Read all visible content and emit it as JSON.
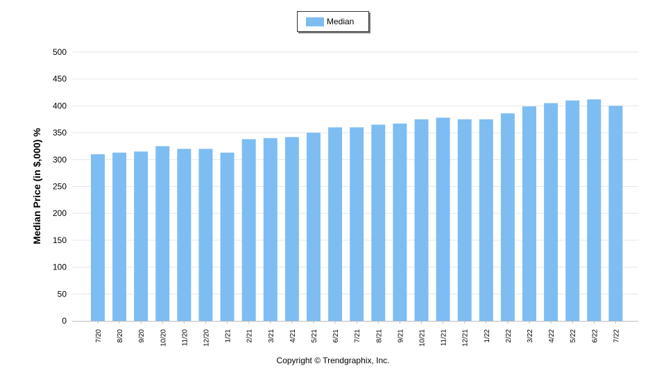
{
  "legend": {
    "label": "Median"
  },
  "colors": {
    "bar": "#7ebdf2",
    "grid": "#e6e6e6",
    "axis": "#bbbbbb"
  },
  "copyright": "Copyright © Trendgraphix, Inc.",
  "chart_data": {
    "type": "bar",
    "title": "",
    "xlabel": "",
    "ylabel": "Median Price (in $,000) %",
    "ylim": [
      0,
      500
    ],
    "yticks": [
      0,
      50,
      100,
      150,
      200,
      250,
      300,
      350,
      400,
      450,
      500
    ],
    "grid": true,
    "legend_position": "top-center",
    "categories": [
      "7/20",
      "8/20",
      "9/20",
      "10/20",
      "11/20",
      "12/20",
      "1/21",
      "2/21",
      "3/21",
      "4/21",
      "5/21",
      "6/21",
      "7/21",
      "8/21",
      "9/21",
      "10/21",
      "11/21",
      "12/21",
      "1/22",
      "2/22",
      "3/22",
      "4/22",
      "5/22",
      "6/22",
      "7/22"
    ],
    "series": [
      {
        "name": "Median",
        "values": [
          310,
          313,
          315,
          325,
          320,
          320,
          313,
          338,
          340,
          342,
          350,
          360,
          360,
          365,
          367,
          375,
          378,
          375,
          375,
          386,
          399,
          405,
          410,
          412,
          400
        ]
      }
    ]
  }
}
